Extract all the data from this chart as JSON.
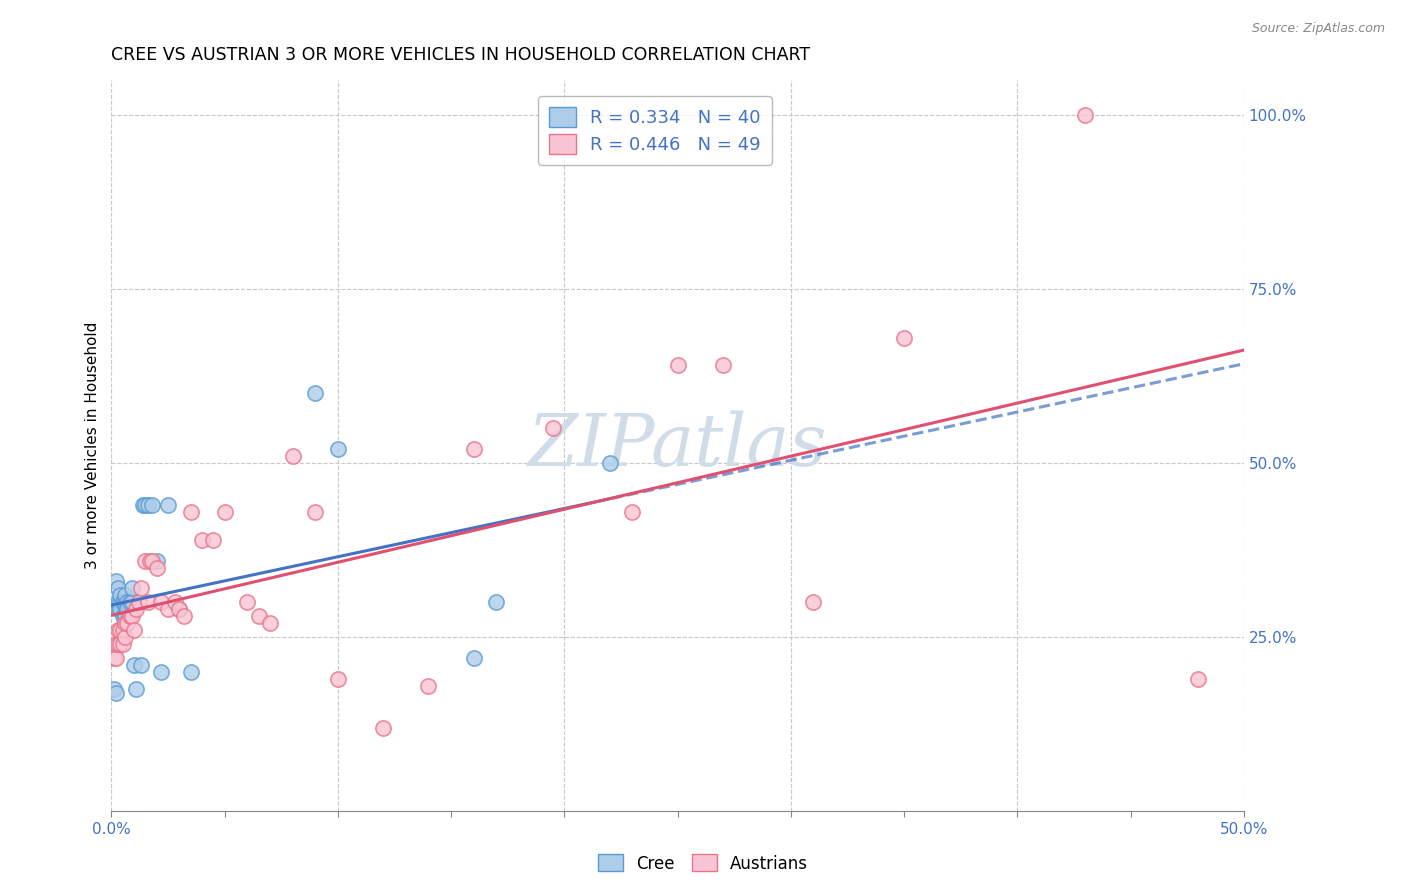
{
  "title": "CREE VS AUSTRIAN 3 OR MORE VEHICLES IN HOUSEHOLD CORRELATION CHART",
  "source": "Source: ZipAtlas.com",
  "ylabel": "3 or more Vehicles in Household",
  "xlabel": "",
  "xlim": [
    0.0,
    0.5
  ],
  "ylim": [
    0.0,
    1.05
  ],
  "xticks": [
    0.0,
    0.05,
    0.1,
    0.15,
    0.2,
    0.25,
    0.3,
    0.35,
    0.4,
    0.45,
    0.5
  ],
  "yticks": [
    0.0,
    0.25,
    0.5,
    0.75,
    1.0
  ],
  "cree_R": 0.334,
  "cree_N": 40,
  "austrians_R": 0.446,
  "austrians_N": 49,
  "cree_fill_color": "#aecde8",
  "austrians_fill_color": "#f9c5d5",
  "cree_edge_color": "#5b9bd5",
  "austrians_edge_color": "#e8748a",
  "cree_line_color": "#4472c4",
  "austrians_line_color": "#e05070",
  "watermark_color": "#d0dce8",
  "background_color": "#ffffff",
  "grid_color": "#c8c8c8",
  "cree_x": [
    0.001,
    0.002,
    0.002,
    0.003,
    0.003,
    0.003,
    0.004,
    0.004,
    0.004,
    0.004,
    0.005,
    0.005,
    0.005,
    0.006,
    0.006,
    0.006,
    0.006,
    0.007,
    0.007,
    0.008,
    0.008,
    0.009,
    0.009,
    0.01,
    0.011,
    0.013,
    0.014,
    0.015,
    0.016,
    0.018,
    0.02,
    0.022,
    0.025,
    0.03,
    0.035,
    0.09,
    0.1,
    0.16,
    0.17,
    0.22
  ],
  "cree_y": [
    0.175,
    0.33,
    0.17,
    0.29,
    0.3,
    0.32,
    0.29,
    0.3,
    0.31,
    0.29,
    0.3,
    0.28,
    0.3,
    0.28,
    0.3,
    0.31,
    0.28,
    0.3,
    0.29,
    0.3,
    0.28,
    0.3,
    0.32,
    0.21,
    0.175,
    0.21,
    0.44,
    0.44,
    0.44,
    0.44,
    0.36,
    0.2,
    0.44,
    0.29,
    0.2,
    0.6,
    0.52,
    0.22,
    0.3,
    0.5
  ],
  "austrians_x": [
    0.001,
    0.002,
    0.002,
    0.003,
    0.003,
    0.004,
    0.004,
    0.005,
    0.005,
    0.006,
    0.006,
    0.007,
    0.008,
    0.009,
    0.01,
    0.011,
    0.012,
    0.013,
    0.015,
    0.016,
    0.017,
    0.018,
    0.02,
    0.022,
    0.025,
    0.028,
    0.03,
    0.032,
    0.035,
    0.04,
    0.045,
    0.05,
    0.06,
    0.065,
    0.07,
    0.08,
    0.09,
    0.1,
    0.12,
    0.14,
    0.16,
    0.195,
    0.23,
    0.25,
    0.27,
    0.31,
    0.35,
    0.43,
    0.48
  ],
  "austrians_y": [
    0.22,
    0.22,
    0.24,
    0.24,
    0.26,
    0.24,
    0.26,
    0.26,
    0.24,
    0.25,
    0.27,
    0.27,
    0.28,
    0.28,
    0.26,
    0.29,
    0.3,
    0.32,
    0.36,
    0.3,
    0.36,
    0.36,
    0.35,
    0.3,
    0.29,
    0.3,
    0.29,
    0.28,
    0.43,
    0.39,
    0.39,
    0.43,
    0.3,
    0.28,
    0.27,
    0.51,
    0.43,
    0.19,
    0.12,
    0.18,
    0.52,
    0.55,
    0.43,
    0.64,
    0.64,
    0.3,
    0.68,
    1.0,
    0.19
  ]
}
